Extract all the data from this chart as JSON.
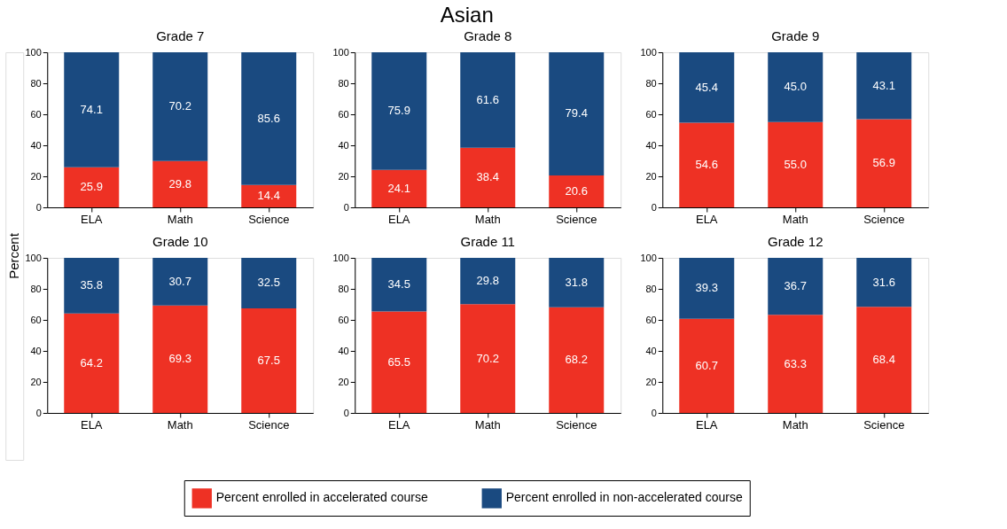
{
  "chart_data": [
    {
      "type": "bar",
      "stacked": true,
      "subtitle": "Grade 7",
      "ylabel": "Percent",
      "categories": [
        "ELA",
        "Math",
        "Science"
      ],
      "ylim": [
        0,
        100
      ],
      "yticks": [
        0,
        20,
        40,
        60,
        80,
        100
      ],
      "grid": false,
      "legend": "bottom",
      "series": [
        {
          "name": "Percent enrolled in accelerated course",
          "color": "#ee3124",
          "values": [
            25.9,
            29.8,
            14.4
          ],
          "value_labels": [
            "25.9",
            "29.8",
            "14.4"
          ]
        },
        {
          "name": "Percent enrolled in non-accelerated course",
          "color": "#1a4a80",
          "values": [
            74.1,
            70.2,
            85.6
          ],
          "value_labels": [
            "74.1",
            "70.2",
            "85.6"
          ]
        }
      ]
    },
    {
      "type": "bar",
      "stacked": true,
      "title": "Asian",
      "subtitle": "Grade 8",
      "categories": [
        "ELA",
        "Math",
        "Science"
      ],
      "ylim": [
        0,
        100
      ],
      "yticks": [
        0,
        20,
        40,
        60,
        80,
        100
      ],
      "grid": false,
      "series": [
        {
          "name": "Percent enrolled in accelerated course",
          "color": "#ee3124",
          "values": [
            24.1,
            38.4,
            20.6
          ],
          "value_labels": [
            "24.1",
            "38.4",
            "20.6"
          ]
        },
        {
          "name": "Percent enrolled in non-accelerated course",
          "color": "#1a4a80",
          "values": [
            75.9,
            61.6,
            79.4
          ],
          "value_labels": [
            "75.9",
            "61.6",
            "79.4"
          ]
        }
      ]
    },
    {
      "type": "bar",
      "stacked": true,
      "subtitle": "Grade 9",
      "categories": [
        "ELA",
        "Math",
        "Science"
      ],
      "ylim": [
        0,
        100
      ],
      "yticks": [
        0,
        20,
        40,
        60,
        80,
        100
      ],
      "grid": false,
      "series": [
        {
          "name": "Percent enrolled in accelerated course",
          "color": "#ee3124",
          "values": [
            54.6,
            55.0,
            56.9
          ],
          "value_labels": [
            "54.6",
            "55.0",
            "56.9"
          ]
        },
        {
          "name": "Percent enrolled in non-accelerated course",
          "color": "#1a4a80",
          "values": [
            45.4,
            45.0,
            43.1
          ],
          "value_labels": [
            "45.4",
            "45.0",
            "43.1"
          ]
        }
      ]
    },
    {
      "type": "bar",
      "stacked": true,
      "subtitle": "Grade 10",
      "categories": [
        "ELA",
        "Math",
        "Science"
      ],
      "ylim": [
        0,
        100
      ],
      "yticks": [
        0,
        20,
        40,
        60,
        80,
        100
      ],
      "grid": false,
      "series": [
        {
          "name": "Percent enrolled in accelerated course",
          "color": "#ee3124",
          "values": [
            64.2,
            69.3,
            67.5
          ],
          "value_labels": [
            "64.2",
            "69.3",
            "67.5"
          ]
        },
        {
          "name": "Percent enrolled in non-accelerated course",
          "color": "#1a4a80",
          "values": [
            35.8,
            30.7,
            32.5
          ],
          "value_labels": [
            "35.8",
            "30.7",
            "32.5"
          ]
        }
      ]
    },
    {
      "type": "bar",
      "stacked": true,
      "subtitle": "Grade 11",
      "categories": [
        "ELA",
        "Math",
        "Science"
      ],
      "ylim": [
        0,
        100
      ],
      "yticks": [
        0,
        20,
        40,
        60,
        80,
        100
      ],
      "grid": false,
      "series": [
        {
          "name": "Percent enrolled in accelerated course",
          "color": "#ee3124",
          "values": [
            65.5,
            70.2,
            68.2
          ],
          "value_labels": [
            "65.5",
            "70.2",
            "68.2"
          ]
        },
        {
          "name": "Percent enrolled in non-accelerated course",
          "color": "#1a4a80",
          "values": [
            34.5,
            29.8,
            31.8
          ],
          "value_labels": [
            "34.5",
            "29.8",
            "31.8"
          ]
        }
      ]
    },
    {
      "type": "bar",
      "stacked": true,
      "subtitle": "Grade 12",
      "categories": [
        "ELA",
        "Math",
        "Science"
      ],
      "ylim": [
        0,
        100
      ],
      "yticks": [
        0,
        20,
        40,
        60,
        80,
        100
      ],
      "grid": false,
      "series": [
        {
          "name": "Percent enrolled in accelerated course",
          "color": "#ee3124",
          "values": [
            60.7,
            63.3,
            68.4
          ],
          "value_labels": [
            "60.7",
            "63.3",
            "68.4"
          ]
        },
        {
          "name": "Percent enrolled in non-accelerated course",
          "color": "#1a4a80",
          "values": [
            39.3,
            36.7,
            31.6
          ],
          "value_labels": [
            "39.3",
            "36.7",
            "31.6"
          ]
        }
      ]
    }
  ]
}
